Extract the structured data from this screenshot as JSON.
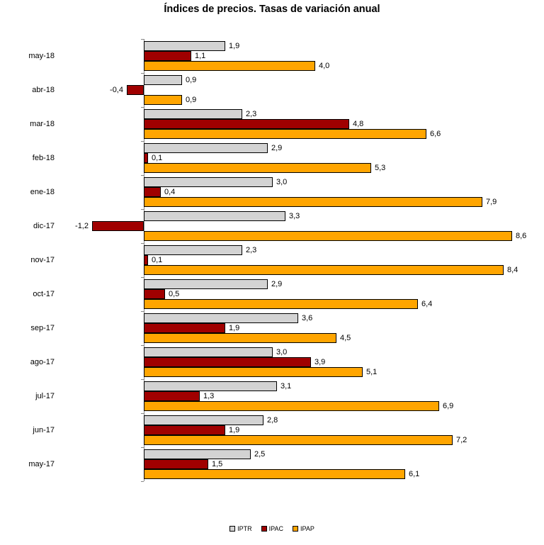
{
  "title": "Índices de precios. Tasas de variación anual",
  "legend": {
    "items": [
      {
        "label": "IPTR",
        "color": "#D3D3D3"
      },
      {
        "label": "IPAC",
        "color": "#A00000"
      },
      {
        "label": "IPAP",
        "color": "#FFA500"
      }
    ]
  },
  "chart_data": {
    "type": "bar",
    "orientation": "horizontal",
    "title": "Índices de precios. Tasas de variación anual",
    "xlabel": "",
    "ylabel": "",
    "xlim": [
      -1.5,
      9.0
    ],
    "grid": false,
    "legend_position": "bottom",
    "decimal_separator": ",",
    "bar_border_color": "#000000",
    "axis_color": "#888888",
    "categories": [
      "may-18",
      "abr-18",
      "mar-18",
      "feb-18",
      "ene-18",
      "dic-17",
      "nov-17",
      "oct-17",
      "sep-17",
      "ago-17",
      "jul-17",
      "jun-17",
      "may-17"
    ],
    "series": [
      {
        "name": "IPTR",
        "color": "#D3D3D3",
        "values": [
          1.9,
          0.9,
          2.3,
          2.9,
          3.0,
          3.3,
          2.3,
          2.9,
          3.6,
          3.0,
          3.1,
          2.8,
          2.5
        ]
      },
      {
        "name": "IPAC",
        "color": "#A00000",
        "values": [
          1.1,
          -0.4,
          4.8,
          0.1,
          0.4,
          -1.2,
          0.1,
          0.5,
          1.9,
          3.9,
          1.3,
          1.9,
          1.5
        ]
      },
      {
        "name": "IPAP",
        "color": "#FFA500",
        "values": [
          4.0,
          0.9,
          6.6,
          5.3,
          7.9,
          8.6,
          8.4,
          6.4,
          4.5,
          5.1,
          6.9,
          7.2,
          6.1
        ]
      }
    ]
  }
}
